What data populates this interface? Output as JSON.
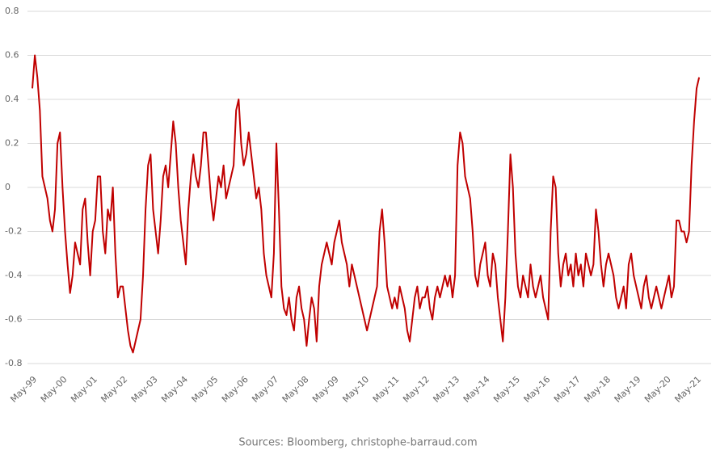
{
  "chart_data": {
    "type": "line",
    "source": "Sources: Bloomberg, christophe-barraud.com",
    "categories": [
      "May-99",
      null,
      null,
      null,
      null,
      null,
      null,
      null,
      null,
      null,
      null,
      null,
      "May-00",
      null,
      null,
      null,
      null,
      null,
      null,
      null,
      null,
      null,
      null,
      null,
      "May-01",
      null,
      null,
      null,
      null,
      null,
      null,
      null,
      null,
      null,
      null,
      null,
      "May-02",
      null,
      null,
      null,
      null,
      null,
      null,
      null,
      null,
      null,
      null,
      null,
      "May-03",
      null,
      null,
      null,
      null,
      null,
      null,
      null,
      null,
      null,
      null,
      null,
      "May-04",
      null,
      null,
      null,
      null,
      null,
      null,
      null,
      null,
      null,
      null,
      null,
      "May-05",
      null,
      null,
      null,
      null,
      null,
      null,
      null,
      null,
      null,
      null,
      null,
      "May-06",
      null,
      null,
      null,
      null,
      null,
      null,
      null,
      null,
      null,
      null,
      null,
      "May-07",
      null,
      null,
      null,
      null,
      null,
      null,
      null,
      null,
      null,
      null,
      null,
      "May-08",
      null,
      null,
      null,
      null,
      null,
      null,
      null,
      null,
      null,
      null,
      null,
      "May-09",
      null,
      null,
      null,
      null,
      null,
      null,
      null,
      null,
      null,
      null,
      null,
      "May-10",
      null,
      null,
      null,
      null,
      null,
      null,
      null,
      null,
      null,
      null,
      null,
      "May-11",
      null,
      null,
      null,
      null,
      null,
      null,
      null,
      null,
      null,
      null,
      null,
      "May-12",
      null,
      null,
      null,
      null,
      null,
      null,
      null,
      null,
      null,
      null,
      null,
      "May-13",
      null,
      null,
      null,
      null,
      null,
      null,
      null,
      null,
      null,
      null,
      null,
      "May-14",
      null,
      null,
      null,
      null,
      null,
      null,
      null,
      null,
      null,
      null,
      null,
      "May-15",
      null,
      null,
      null,
      null,
      null,
      null,
      null,
      null,
      null,
      null,
      null,
      "May-16",
      null,
      null,
      null,
      null,
      null,
      null,
      null,
      null,
      null,
      null,
      null,
      "May-17",
      null,
      null,
      null,
      null,
      null,
      null,
      null,
      null,
      null,
      null,
      null,
      "May-18",
      null,
      null,
      null,
      null,
      null,
      null,
      null,
      null,
      null,
      null,
      null,
      "May-19",
      null,
      null,
      null,
      null,
      null,
      null,
      null,
      null,
      null,
      null,
      null,
      "May-20",
      null,
      null,
      null,
      null,
      null,
      null,
      null,
      null,
      null,
      null,
      null,
      "May-21",
      null
    ],
    "values": [
      0.45,
      0.6,
      0.5,
      0.35,
      0.05,
      0.0,
      -0.05,
      -0.15,
      -0.2,
      -0.1,
      0.2,
      0.25,
      0.0,
      -0.2,
      -0.35,
      -0.48,
      -0.4,
      -0.25,
      -0.3,
      -0.35,
      -0.1,
      -0.05,
      -0.25,
      -0.4,
      -0.2,
      -0.15,
      0.05,
      0.05,
      -0.2,
      -0.3,
      -0.1,
      -0.15,
      0.0,
      -0.3,
      -0.5,
      -0.45,
      -0.45,
      -0.55,
      -0.65,
      -0.72,
      -0.75,
      -0.7,
      -0.65,
      -0.6,
      -0.4,
      -0.1,
      0.1,
      0.15,
      -0.1,
      -0.2,
      -0.3,
      -0.15,
      0.05,
      0.1,
      0.0,
      0.15,
      0.3,
      0.2,
      0.0,
      -0.15,
      -0.25,
      -0.35,
      -0.1,
      0.05,
      0.15,
      0.05,
      0.0,
      0.1,
      0.25,
      0.25,
      0.1,
      -0.05,
      -0.15,
      -0.05,
      0.05,
      0.0,
      0.1,
      -0.05,
      0.0,
      0.05,
      0.1,
      0.35,
      0.4,
      0.2,
      0.1,
      0.15,
      0.25,
      0.15,
      0.05,
      -0.05,
      0.0,
      -0.1,
      -0.3,
      -0.4,
      -0.45,
      -0.5,
      -0.3,
      0.2,
      -0.1,
      -0.45,
      -0.55,
      -0.58,
      -0.5,
      -0.6,
      -0.65,
      -0.5,
      -0.45,
      -0.55,
      -0.6,
      -0.72,
      -0.6,
      -0.5,
      -0.55,
      -0.7,
      -0.45,
      -0.35,
      -0.3,
      -0.25,
      -0.3,
      -0.35,
      -0.25,
      -0.2,
      -0.15,
      -0.25,
      -0.3,
      -0.35,
      -0.45,
      -0.35,
      -0.4,
      -0.45,
      -0.5,
      -0.55,
      -0.6,
      -0.65,
      -0.6,
      -0.55,
      -0.5,
      -0.45,
      -0.2,
      -0.1,
      -0.25,
      -0.45,
      -0.5,
      -0.55,
      -0.5,
      -0.55,
      -0.45,
      -0.5,
      -0.55,
      -0.65,
      -0.7,
      -0.6,
      -0.5,
      -0.45,
      -0.55,
      -0.5,
      -0.5,
      -0.45,
      -0.55,
      -0.6,
      -0.5,
      -0.45,
      -0.5,
      -0.45,
      -0.4,
      -0.45,
      -0.4,
      -0.5,
      -0.4,
      0.1,
      0.25,
      0.2,
      0.05,
      0.0,
      -0.05,
      -0.2,
      -0.4,
      -0.45,
      -0.35,
      -0.3,
      -0.25,
      -0.4,
      -0.45,
      -0.3,
      -0.35,
      -0.5,
      -0.6,
      -0.7,
      -0.5,
      -0.2,
      0.15,
      0.0,
      -0.3,
      -0.45,
      -0.5,
      -0.4,
      -0.45,
      -0.5,
      -0.35,
      -0.45,
      -0.5,
      -0.45,
      -0.4,
      -0.5,
      -0.55,
      -0.6,
      -0.2,
      0.05,
      0.0,
      -0.3,
      -0.45,
      -0.35,
      -0.3,
      -0.4,
      -0.35,
      -0.45,
      -0.3,
      -0.4,
      -0.35,
      -0.45,
      -0.3,
      -0.35,
      -0.4,
      -0.35,
      -0.1,
      -0.2,
      -0.35,
      -0.45,
      -0.35,
      -0.3,
      -0.35,
      -0.4,
      -0.5,
      -0.55,
      -0.5,
      -0.45,
      -0.55,
      -0.35,
      -0.3,
      -0.4,
      -0.45,
      -0.5,
      -0.55,
      -0.45,
      -0.4,
      -0.5,
      -0.55,
      -0.5,
      -0.45,
      -0.5,
      -0.55,
      -0.5,
      -0.45,
      -0.4,
      -0.5,
      -0.45,
      -0.15,
      -0.15,
      -0.2,
      -0.2,
      -0.25,
      -0.2,
      0.1,
      0.3,
      0.45,
      0.5
    ],
    "color": "#c00000",
    "ylim": [
      -0.8,
      0.8
    ],
    "yticks": [
      -0.8,
      -0.6,
      -0.4,
      -0.2,
      0,
      0.2,
      0.4,
      0.6,
      0.8
    ],
    "grid": true
  }
}
